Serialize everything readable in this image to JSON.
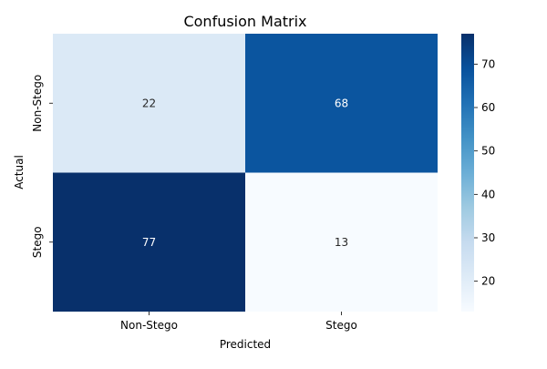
{
  "chart_data": {
    "type": "heatmap",
    "title": "Confusion Matrix",
    "xlabel": "Predicted",
    "ylabel": "Actual",
    "x_categories": [
      "Non-Stego",
      "Stego"
    ],
    "y_categories": [
      "Non-Stego",
      "Stego"
    ],
    "values": [
      [
        22,
        68
      ],
      [
        77,
        13
      ]
    ],
    "colorbar": {
      "min": 13,
      "max": 77,
      "ticks": [
        20,
        30,
        40,
        50,
        60,
        70
      ],
      "colormap": "Blues"
    },
    "grid": false,
    "legend": "colorbar-right"
  }
}
